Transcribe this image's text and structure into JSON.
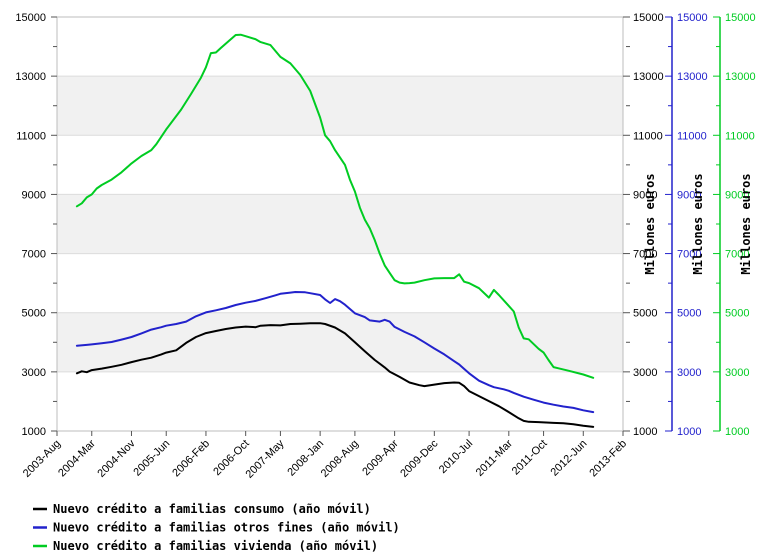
{
  "chart_data": {
    "type": "line",
    "title": "",
    "x_axis": {
      "months_total": 114,
      "ticks": [
        {
          "label": "2003-Aug",
          "month": 0
        },
        {
          "label": "2004-Mar",
          "month": 7
        },
        {
          "label": "2004-Nov",
          "month": 15
        },
        {
          "label": "2005-Jun",
          "month": 22
        },
        {
          "label": "2006-Feb",
          "month": 30
        },
        {
          "label": "2006-Oct",
          "month": 38
        },
        {
          "label": "2007-May",
          "month": 45
        },
        {
          "label": "2008-Jan",
          "month": 53
        },
        {
          "label": "2008-Aug",
          "month": 60
        },
        {
          "label": "2009-Apr",
          "month": 68
        },
        {
          "label": "2009-Dec",
          "month": 76
        },
        {
          "label": "2010-Jul",
          "month": 83
        },
        {
          "label": "2011-Mar",
          "month": 91
        },
        {
          "label": "2011-Oct",
          "month": 98
        },
        {
          "label": "2012-Jun",
          "month": 106
        },
        {
          "label": "2013-Feb",
          "month": 114
        }
      ]
    },
    "y_axis": {
      "min": 1000,
      "max": 15000,
      "major_ticks": [
        1000,
        3000,
        5000,
        7000,
        9000,
        11000,
        13000,
        15000
      ],
      "minor_ticks": [
        2000,
        4000,
        6000,
        8000,
        10000,
        12000,
        14000
      ],
      "unit_label": "Millones euros",
      "right_axes": [
        {
          "number_color": "#000000",
          "line_color": "none",
          "unit_label": "Millones euros"
        },
        {
          "number_color": "#2222cc",
          "line_color": "#2222cc",
          "unit_label": "Millones euros"
        },
        {
          "number_color": "#00cc22",
          "line_color": "#00cc22",
          "unit_label": "Millones euros"
        }
      ]
    },
    "style": {
      "band_gray": "#f1f1f1",
      "grid_color": "#dcdcdc",
      "border_color": "#bdbdbd",
      "tick_color": "#555555",
      "text_color": "#000000"
    },
    "series": [
      {
        "name": "Nuevo crédito a familias consumo (año móvil)",
        "color": "#000000",
        "points": [
          [
            4,
            2950
          ],
          [
            5,
            3020
          ],
          [
            6,
            2990
          ],
          [
            7,
            3060
          ],
          [
            9,
            3110
          ],
          [
            11,
            3170
          ],
          [
            13,
            3240
          ],
          [
            15,
            3330
          ],
          [
            17,
            3410
          ],
          [
            19,
            3480
          ],
          [
            21,
            3590
          ],
          [
            22,
            3650
          ],
          [
            24,
            3730
          ],
          [
            26,
            3980
          ],
          [
            28,
            4180
          ],
          [
            30,
            4310
          ],
          [
            32,
            4380
          ],
          [
            34,
            4450
          ],
          [
            36,
            4500
          ],
          [
            38,
            4530
          ],
          [
            40,
            4510
          ],
          [
            41,
            4560
          ],
          [
            43,
            4580
          ],
          [
            45,
            4570
          ],
          [
            47,
            4620
          ],
          [
            49,
            4630
          ],
          [
            51,
            4645
          ],
          [
            53,
            4645
          ],
          [
            54,
            4620
          ],
          [
            56,
            4500
          ],
          [
            58,
            4300
          ],
          [
            60,
            4000
          ],
          [
            62,
            3700
          ],
          [
            64,
            3400
          ],
          [
            66,
            3150
          ],
          [
            67,
            3010
          ],
          [
            69,
            2830
          ],
          [
            71,
            2640
          ],
          [
            73,
            2550
          ],
          [
            74,
            2520
          ],
          [
            76,
            2570
          ],
          [
            78,
            2620
          ],
          [
            80,
            2640
          ],
          [
            81,
            2630
          ],
          [
            82,
            2520
          ],
          [
            83,
            2350
          ],
          [
            85,
            2180
          ],
          [
            87,
            2010
          ],
          [
            89,
            1840
          ],
          [
            91,
            1640
          ],
          [
            93,
            1430
          ],
          [
            94,
            1340
          ],
          [
            95,
            1310
          ],
          [
            97,
            1300
          ],
          [
            98,
            1290
          ],
          [
            100,
            1275
          ],
          [
            102,
            1260
          ],
          [
            104,
            1230
          ],
          [
            106,
            1180
          ],
          [
            108,
            1140
          ]
        ]
      },
      {
        "name": "Nuevo crédito a familias otros fines (año móvil)",
        "color": "#2222cc",
        "points": [
          [
            4,
            3880
          ],
          [
            6,
            3910
          ],
          [
            7,
            3930
          ],
          [
            9,
            3970
          ],
          [
            11,
            4010
          ],
          [
            13,
            4090
          ],
          [
            15,
            4180
          ],
          [
            17,
            4300
          ],
          [
            19,
            4430
          ],
          [
            21,
            4510
          ],
          [
            22,
            4560
          ],
          [
            24,
            4620
          ],
          [
            26,
            4700
          ],
          [
            28,
            4880
          ],
          [
            30,
            5010
          ],
          [
            32,
            5080
          ],
          [
            34,
            5160
          ],
          [
            36,
            5260
          ],
          [
            38,
            5340
          ],
          [
            40,
            5400
          ],
          [
            42,
            5490
          ],
          [
            44,
            5590
          ],
          [
            45,
            5640
          ],
          [
            47,
            5680
          ],
          [
            48,
            5700
          ],
          [
            50,
            5690
          ],
          [
            51,
            5660
          ],
          [
            53,
            5600
          ],
          [
            54,
            5450
          ],
          [
            55,
            5330
          ],
          [
            56,
            5460
          ],
          [
            57,
            5390
          ],
          [
            58,
            5270
          ],
          [
            60,
            4980
          ],
          [
            62,
            4850
          ],
          [
            63,
            4740
          ],
          [
            65,
            4700
          ],
          [
            66,
            4760
          ],
          [
            67,
            4700
          ],
          [
            68,
            4520
          ],
          [
            70,
            4350
          ],
          [
            72,
            4200
          ],
          [
            74,
            4000
          ],
          [
            76,
            3790
          ],
          [
            78,
            3590
          ],
          [
            80,
            3360
          ],
          [
            81,
            3250
          ],
          [
            82,
            3100
          ],
          [
            83,
            2950
          ],
          [
            85,
            2700
          ],
          [
            87,
            2550
          ],
          [
            88,
            2480
          ],
          [
            90,
            2410
          ],
          [
            91,
            2360
          ],
          [
            92,
            2290
          ],
          [
            94,
            2160
          ],
          [
            96,
            2060
          ],
          [
            98,
            1960
          ],
          [
            100,
            1890
          ],
          [
            102,
            1830
          ],
          [
            104,
            1780
          ],
          [
            106,
            1700
          ],
          [
            108,
            1640
          ]
        ]
      },
      {
        "name": "Nuevo crédito a familias vivienda (año móvil)",
        "color": "#00cc22",
        "points": [
          [
            4,
            8600
          ],
          [
            5,
            8700
          ],
          [
            6,
            8900
          ],
          [
            7,
            9000
          ],
          [
            8,
            9200
          ],
          [
            9,
            9320
          ],
          [
            11,
            9500
          ],
          [
            13,
            9750
          ],
          [
            15,
            10050
          ],
          [
            17,
            10300
          ],
          [
            19,
            10500
          ],
          [
            20,
            10700
          ],
          [
            22,
            11200
          ],
          [
            25,
            11870
          ],
          [
            27,
            12400
          ],
          [
            29,
            12950
          ],
          [
            30,
            13300
          ],
          [
            31,
            13780
          ],
          [
            32,
            13800
          ],
          [
            33,
            13950
          ],
          [
            35,
            14250
          ],
          [
            36,
            14390
          ],
          [
            37,
            14400
          ],
          [
            38,
            14350
          ],
          [
            40,
            14250
          ],
          [
            41,
            14150
          ],
          [
            43,
            14050
          ],
          [
            45,
            13650
          ],
          [
            47,
            13430
          ],
          [
            49,
            13040
          ],
          [
            51,
            12500
          ],
          [
            53,
            11600
          ],
          [
            54,
            11000
          ],
          [
            55,
            10800
          ],
          [
            56,
            10500
          ],
          [
            58,
            10000
          ],
          [
            59,
            9500
          ],
          [
            60,
            9100
          ],
          [
            61,
            8550
          ],
          [
            62,
            8150
          ],
          [
            63,
            7850
          ],
          [
            64,
            7450
          ],
          [
            65,
            7000
          ],
          [
            66,
            6600
          ],
          [
            67,
            6350
          ],
          [
            68,
            6100
          ],
          [
            69,
            6020
          ],
          [
            70,
            5990
          ],
          [
            71,
            6000
          ],
          [
            72,
            6020
          ],
          [
            74,
            6100
          ],
          [
            76,
            6160
          ],
          [
            78,
            6170
          ],
          [
            80,
            6170
          ],
          [
            81,
            6300
          ],
          [
            82,
            6050
          ],
          [
            83,
            6000
          ],
          [
            85,
            5830
          ],
          [
            87,
            5510
          ],
          [
            88,
            5770
          ],
          [
            89,
            5600
          ],
          [
            91,
            5230
          ],
          [
            92,
            5040
          ],
          [
            93,
            4500
          ],
          [
            94,
            4130
          ],
          [
            95,
            4100
          ],
          [
            97,
            3780
          ],
          [
            98,
            3650
          ],
          [
            99,
            3400
          ],
          [
            100,
            3160
          ],
          [
            101,
            3120
          ],
          [
            103,
            3040
          ],
          [
            106,
            2910
          ],
          [
            108,
            2800
          ]
        ]
      }
    ],
    "legend_position": "bottom-left",
    "grid": true
  }
}
